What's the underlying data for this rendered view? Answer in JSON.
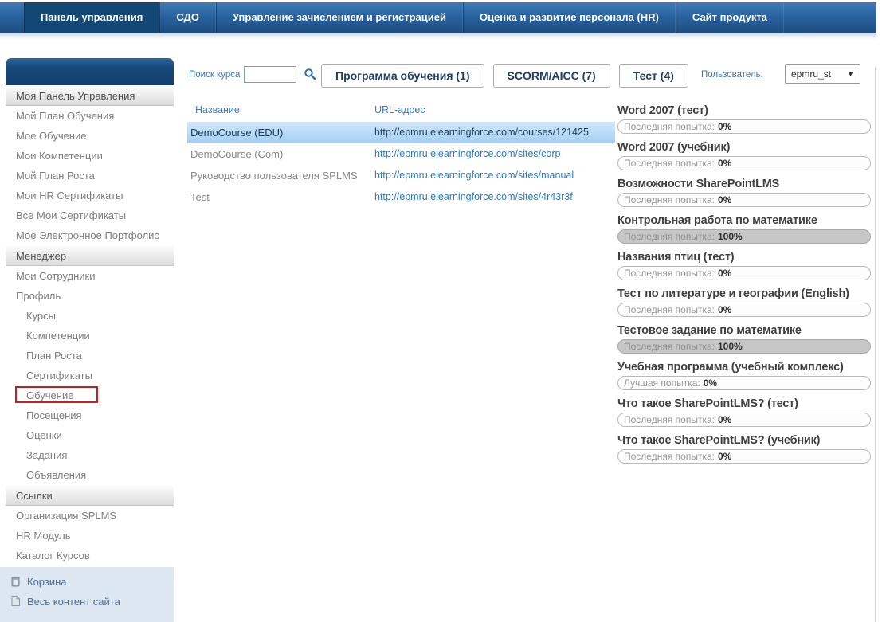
{
  "topnav": {
    "tabs": [
      {
        "label": "Панель управления",
        "active": true
      },
      {
        "label": "СДО",
        "active": false
      },
      {
        "label": "Управление зачислением и регистрацией",
        "active": false
      },
      {
        "label": "Оценка и развитие персонала (HR)",
        "active": false
      },
      {
        "label": "Сайт продукта",
        "active": false
      }
    ]
  },
  "sidebar": {
    "sections": [
      {
        "header": "Моя Панель Управления",
        "items": [
          {
            "label": "Мой План Обучения"
          },
          {
            "label": "Мое Обучение"
          },
          {
            "label": "Мои Компетенции"
          },
          {
            "label": "Мой План Роста"
          },
          {
            "label": "Мои HR Сертификаты"
          },
          {
            "label": "Все Мои Сертификаты"
          },
          {
            "label": "Мое Электронное Портфолио"
          }
        ]
      },
      {
        "header": "Менеджер",
        "items": [
          {
            "label": "Мои Сотрудники"
          },
          {
            "label": "Профиль"
          },
          {
            "label": "Курсы",
            "indent": true
          },
          {
            "label": "Компетенции",
            "indent": true
          },
          {
            "label": "План Роста",
            "indent": true
          },
          {
            "label": "Сертификаты",
            "indent": true
          },
          {
            "label": "Обучение",
            "indent": true,
            "annotated": true
          },
          {
            "label": "Посещения",
            "indent": true
          },
          {
            "label": "Оценки",
            "indent": true
          },
          {
            "label": "Задания",
            "indent": true
          },
          {
            "label": "Объявления",
            "indent": true
          }
        ]
      },
      {
        "header": "Ссылки",
        "items": [
          {
            "label": "Организация SPLMS"
          },
          {
            "label": "HR Модуль"
          },
          {
            "label": "Каталог Курсов"
          }
        ]
      }
    ],
    "footer_items": [
      {
        "label": "Корзина",
        "icon": "recycle-bin-icon"
      },
      {
        "label": "Весь контент сайта",
        "icon": "site-content-icon"
      }
    ]
  },
  "toolbar": {
    "search_label": "Поиск курса",
    "search_value": "",
    "search_icon": "search-icon",
    "filter_buttons": [
      "Программа обучения (1)",
      "SCORM/AICC (7)",
      "Тест (4)"
    ],
    "user_label": "Пользователь:",
    "user_value": "epmru_st"
  },
  "courses_table": {
    "columns": [
      "Название",
      "URL-адрес"
    ],
    "rows": [
      {
        "name": "DemoCourse (EDU)",
        "url": "http://epmru.elearningforce.com/courses/121425",
        "selected": true
      },
      {
        "name": "DemoCourse (Com)",
        "url": "http://epmru.elearningforce.com/sites/corp",
        "selected": false
      },
      {
        "name": "Руководство пользователя SPLMS",
        "url": "http://epmru.elearningforce.com/sites/manual",
        "selected": false
      },
      {
        "name": "Test",
        "url": "http://epmru.elearningforce.com/sites/4r43r3f",
        "selected": false
      }
    ]
  },
  "results_panel": {
    "items": [
      {
        "title": "Word 2007 (тест)",
        "attempt_label": "Последняя попытка:",
        "value": "0%",
        "percent": 0
      },
      {
        "title": "Word 2007 (учебник)",
        "attempt_label": "Последняя попытка:",
        "value": "0%",
        "percent": 0
      },
      {
        "title": "Возможности SharePointLMS",
        "attempt_label": "Последняя попытка:",
        "value": "0%",
        "percent": 0
      },
      {
        "title": "Контрольная работа по математике",
        "attempt_label": "Последняя попытка:",
        "value": "100%",
        "percent": 100
      },
      {
        "title": "Названия птиц (тест)",
        "attempt_label": "Последняя попытка:",
        "value": "0%",
        "percent": 0
      },
      {
        "title": "Тест по литературе и географии (English)",
        "attempt_label": "Последняя попытка:",
        "value": "0%",
        "percent": 0
      },
      {
        "title": "Тестовое задание по математике",
        "attempt_label": "Последняя попытка:",
        "value": "100%",
        "percent": 100
      },
      {
        "title": "Учебная программа (учебный комплекс)",
        "attempt_label": "Лучшая попытка:",
        "value": "0%",
        "percent": 0
      },
      {
        "title": "Что такое SharePointLMS? (тест)",
        "attempt_label": "Последняя попытка:",
        "value": "0%",
        "percent": 0
      },
      {
        "title": "Что такое SharePointLMS? (учебник)",
        "attempt_label": "Последняя попытка:",
        "value": "0%",
        "percent": 0
      }
    ]
  },
  "colors": {
    "nav_gradient_top": "#3e7cb7",
    "nav_gradient_bottom": "#1d4d82",
    "nav_active_tab": "#134876",
    "link_blue": "#2e7ac0",
    "selected_row_blue": "#b8dbf8",
    "filled_bar_gray": "#c7c7c7",
    "annotation_red": "#c61f1f",
    "sidebar_footer_bg": "#dce7f2"
  }
}
